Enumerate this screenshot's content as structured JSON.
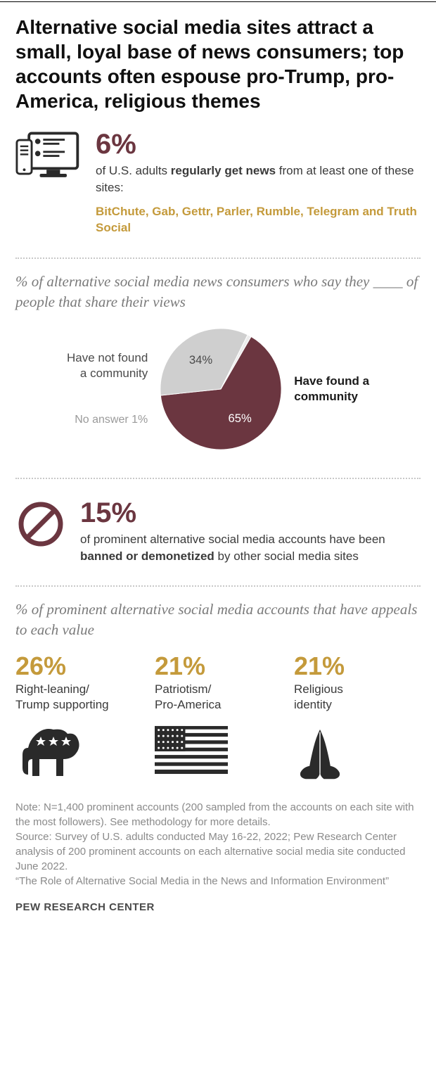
{
  "colors": {
    "maroon": "#6b3640",
    "gold": "#c49a3b",
    "grey": "#cfcfcf",
    "dark_icon": "#2a2a2a",
    "text": "#3a3a3a",
    "subhead_grey": "#7a7a7a"
  },
  "title": "Alternative social media sites attract a small, loyal base of news consumers; top accounts often espouse pro-Trump, pro-America, religious themes",
  "section1": {
    "pct": "6%",
    "desc_pre": "of U.S. adults ",
    "desc_bold": "regularly get news",
    "desc_post": " from at least one of these sites:",
    "sites": "BitChute, Gab, Gettr, Parler, Rumble, Telegram and Truth Social"
  },
  "section2": {
    "subhead": "% of alternative social media news consumers who say they ____ of people that share their views",
    "pie": {
      "type": "pie",
      "radius": 88,
      "slices": [
        {
          "label": "Have found a community",
          "value": 65,
          "color": "#6b3640",
          "label_bold": true
        },
        {
          "label": "Have not found a community",
          "value": 34,
          "color": "#cfcfcf",
          "label_bold": false
        },
        {
          "label": "No answer",
          "value": 1,
          "color": "#ececec",
          "label_bold": false
        }
      ],
      "fontsize_pct": 17,
      "rotation_deg": -60
    },
    "left_label1": "Have not found",
    "left_label2": "a community",
    "noanswer_label": "No answer 1%",
    "right_label1": "Have found a",
    "right_label2": "community"
  },
  "section3": {
    "pct": "15%",
    "desc_pre": "of prominent alternative social media accounts have been ",
    "desc_bold": "banned or demonetized",
    "desc_post": " by other social media sites"
  },
  "section4": {
    "subhead": "% of prominent alternative social media accounts that have appeals to each value",
    "values": [
      {
        "pct": "26%",
        "label1": "Right-leaning/",
        "label2": "Trump supporting",
        "icon": "elephant"
      },
      {
        "pct": "21%",
        "label1": "Patriotism/",
        "label2": "Pro-America",
        "icon": "flag"
      },
      {
        "pct": "21%",
        "label1": "Religious",
        "label2": "identity",
        "icon": "pray"
      }
    ]
  },
  "notes": {
    "note": "Note: N=1,400 prominent accounts (200 sampled from the accounts on each site with the most followers). See methodology for more details.",
    "source": "Source: Survey of U.S. adults conducted May 16-22, 2022; Pew Research Center analysis of 200 prominent accounts on each alternative social media site conducted June 2022.",
    "quote": "“The Role of Alternative Social Media in the News and Information Environment”"
  },
  "attribution": "PEW RESEARCH CENTER"
}
